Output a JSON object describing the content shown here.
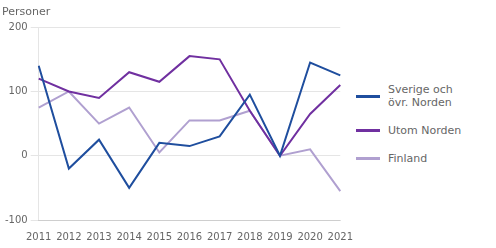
{
  "chart_data": {
    "type": "line",
    "ylabel": "Personer",
    "categories": [
      "2011",
      "2012",
      "2013",
      "2014",
      "2015",
      "2016",
      "2017",
      "2018",
      "2019",
      "2020",
      "2021"
    ],
    "series": [
      {
        "name": "Sverige och\növr. Norden",
        "color": "#1f4e9e",
        "values": [
          140,
          -20,
          25,
          -50,
          20,
          15,
          30,
          95,
          0,
          145,
          125
        ]
      },
      {
        "name": "Utom Norden",
        "color": "#7030a0",
        "values": [
          120,
          100,
          90,
          130,
          115,
          155,
          150,
          70,
          0,
          65,
          110
        ]
      },
      {
        "name": "Finland",
        "color": "#b0a0d0",
        "values": [
          75,
          100,
          50,
          75,
          5,
          55,
          55,
          70,
          0,
          10,
          -55
        ]
      }
    ],
    "ylim": [
      -100,
      200
    ],
    "yticks": [
      -100,
      0,
      100,
      200
    ],
    "grid": true,
    "legend": "right"
  }
}
